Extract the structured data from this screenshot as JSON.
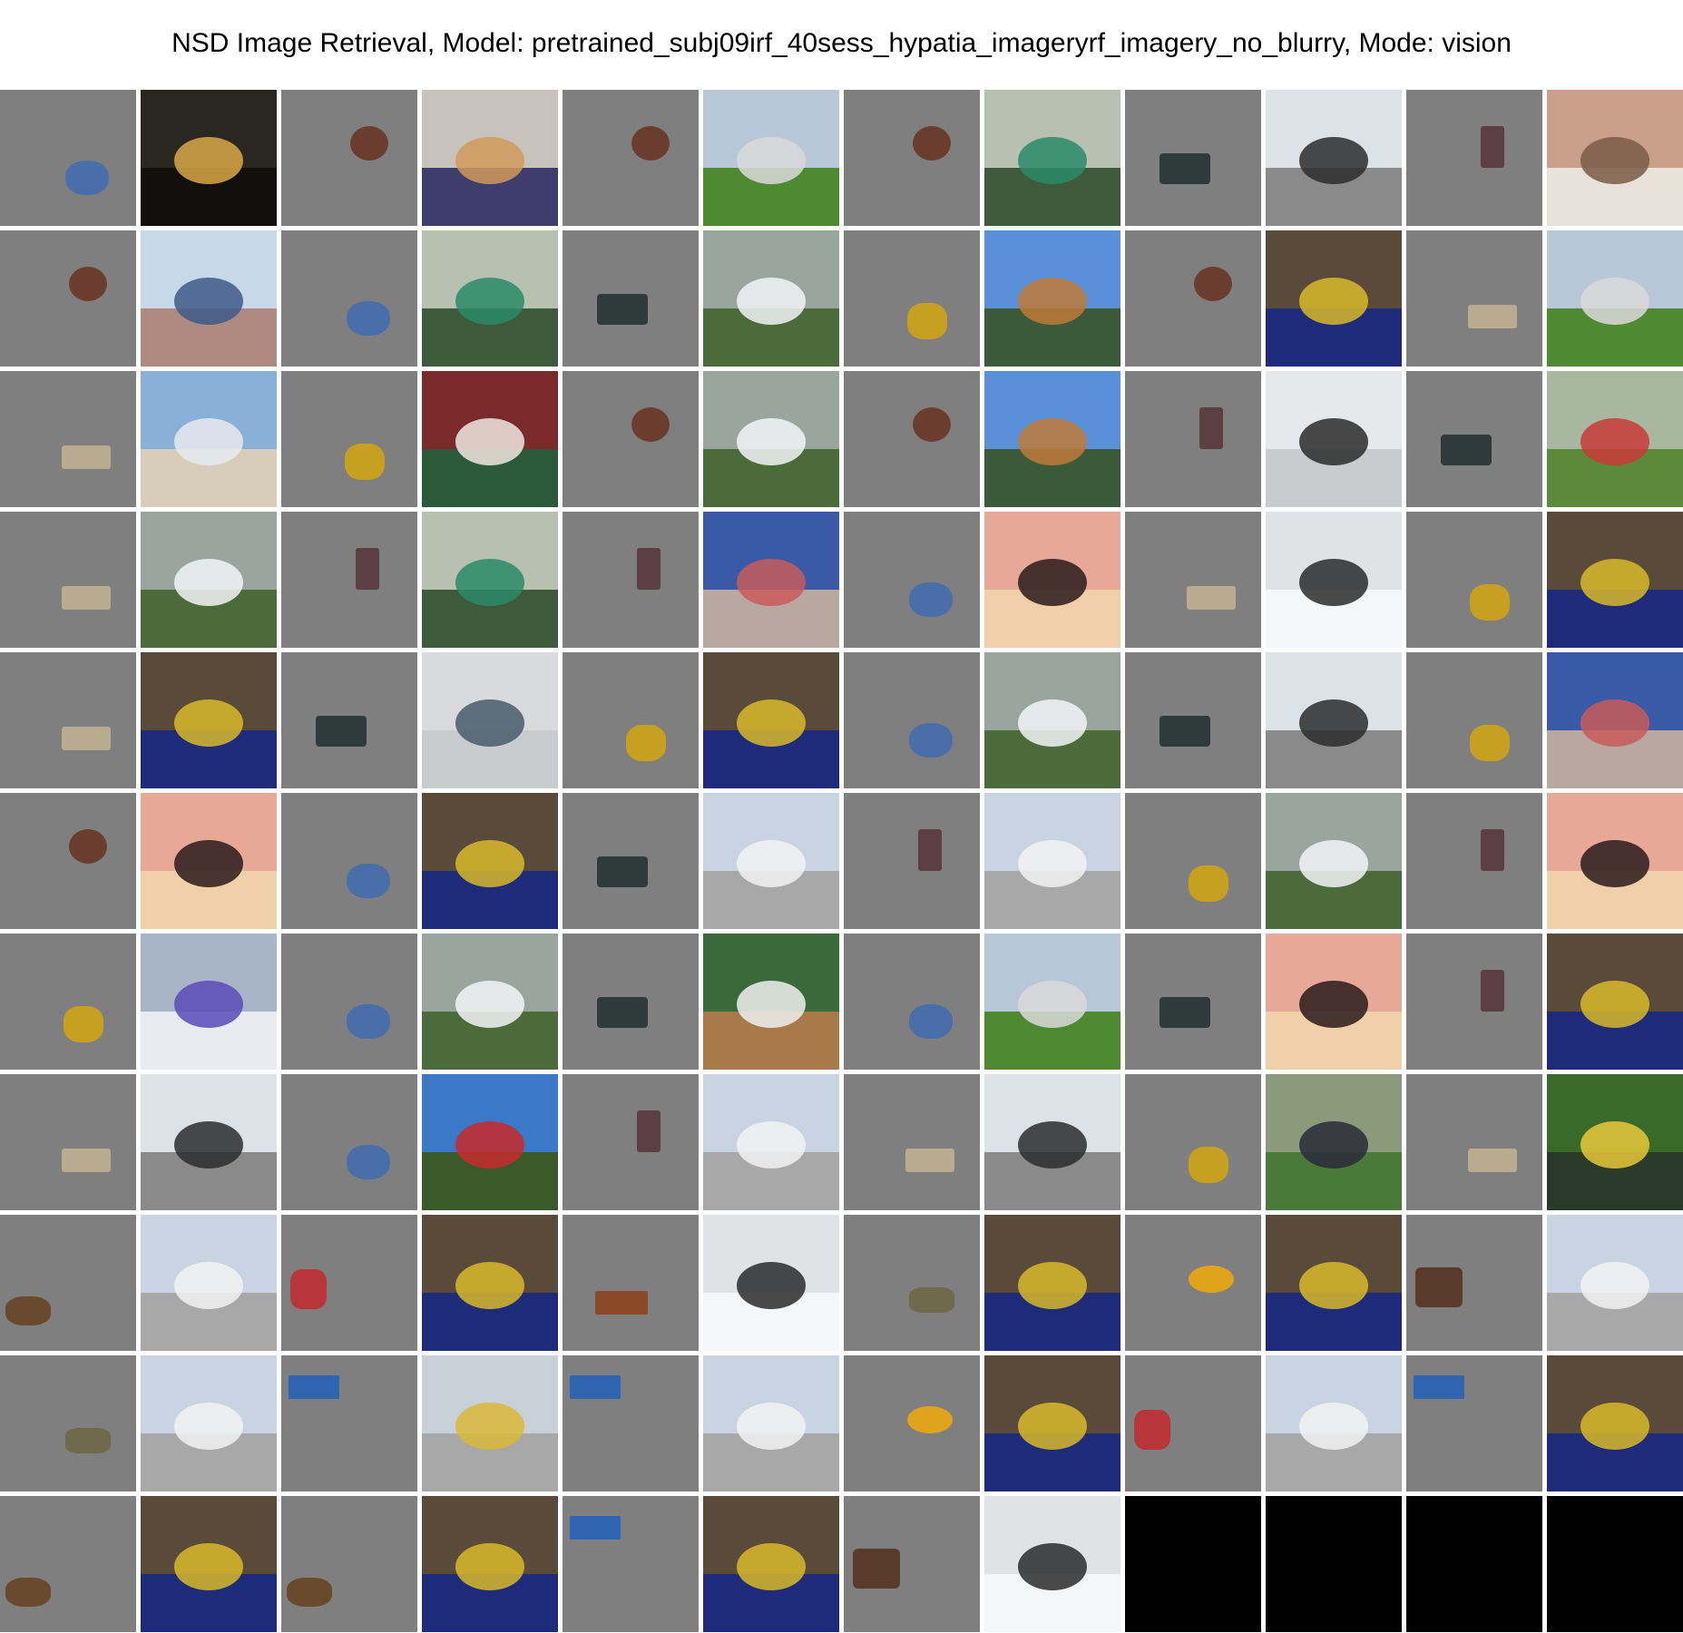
{
  "figure": {
    "title": "NSD Image Retrieval, Model: pretrained_subj09irf_40sess_hypatia_imageryrf_imagery_no_blurry, Mode: vision",
    "columns": 12,
    "rows": 11
  },
  "tile_types": [
    "stimulus",
    "retrieved"
  ],
  "grid": [
    [
      "stim-blue-cluster",
      "night-city-tower",
      "stim-baby-face",
      "dogs-in-bed",
      "stim-baby-face",
      "frisbee-field",
      "stim-baby-face",
      "road-sign-roma",
      "stim-crowd",
      "skateboarder-street",
      "stim-bottle",
      "cat-on-shelf"
    ],
    [
      "stim-baby-face",
      "skateboard-ramp",
      "stim-blue-cluster",
      "road-sign-roma",
      "stim-crowd",
      "airplane-flying",
      "stim-gold-flower",
      "kite-beach",
      "stim-baby-face",
      "banana-bowl",
      "stim-coin",
      "frisbee-field"
    ],
    [
      "stim-coin",
      "small-plane-beach",
      "stim-gold-flower",
      "tennis-player",
      "stim-baby-face",
      "airplane-flying",
      "stim-baby-face",
      "kite-beach",
      "stim-bottle",
      "snowboard-jump",
      "stim-crowd",
      "kids-soccer"
    ],
    [
      "stim-coin",
      "airplane-flying",
      "stim-bottle",
      "road-sign-roma",
      "stim-bottle",
      "stop-sign-street",
      "stim-blue-cluster",
      "birthday-card",
      "stim-coin",
      "statue-flags",
      "stim-gold-flower",
      "banana-bowl"
    ],
    [
      "stim-coin",
      "banana-bowl",
      "stim-crowd",
      "lighthouse",
      "stim-gold-flower",
      "banana-bowl",
      "stim-blue-cluster",
      "airplane-flying",
      "stim-crowd",
      "skateboarder-street",
      "stim-gold-flower",
      "stop-sign-street"
    ],
    [
      "stim-baby-face",
      "birthday-card",
      "stim-blue-cluster",
      "banana-bowl",
      "stim-crowd",
      "cessna-tarmac",
      "stim-bottle",
      "cessna-tarmac",
      "stim-gold-flower",
      "airplane-flying",
      "stim-bottle",
      "birthday-card"
    ],
    [
      "stim-gold-flower",
      "phone-table",
      "stim-blue-cluster",
      "airplane-flying",
      "stim-crowd",
      "baseball-batter",
      "stim-blue-cluster",
      "frisbee-field",
      "stim-crowd",
      "birthday-card",
      "stim-bottle",
      "banana-bowl"
    ],
    [
      "stim-coin",
      "skateboarder-street",
      "stim-blue-cluster",
      "stop-sign-trees",
      "stim-bottle",
      "cessna-tarmac",
      "stim-coin",
      "skateboarder-street",
      "stim-gold-flower",
      "motorcycle-grass",
      "stim-coin",
      "baseball-players"
    ],
    [
      "stim-walrus",
      "cessna-tarmac",
      "stim-red-figure",
      "banana-bowl",
      "stim-roof",
      "statue-flags",
      "stim-croc",
      "banana-bowl",
      "stim-yellow-chips",
      "banana-bowl",
      "stim-faces",
      "cessna-tarmac"
    ],
    [
      "stim-croc",
      "cessna-tarmac",
      "stim-sky-patch",
      "skate-bowl",
      "stim-sky-patch",
      "cessna-tarmac",
      "stim-yellow-chips",
      "banana-bowl",
      "stim-red-figure",
      "cessna-tarmac",
      "stim-sky-patch",
      "banana-bowl"
    ],
    [
      "stim-walrus",
      "banana-bowl",
      "stim-walrus",
      "banana-bowl",
      "stim-sky-patch",
      "banana-bowl",
      "stim-faces",
      "statue-flags",
      "empty",
      "empty",
      "empty",
      "empty"
    ]
  ]
}
